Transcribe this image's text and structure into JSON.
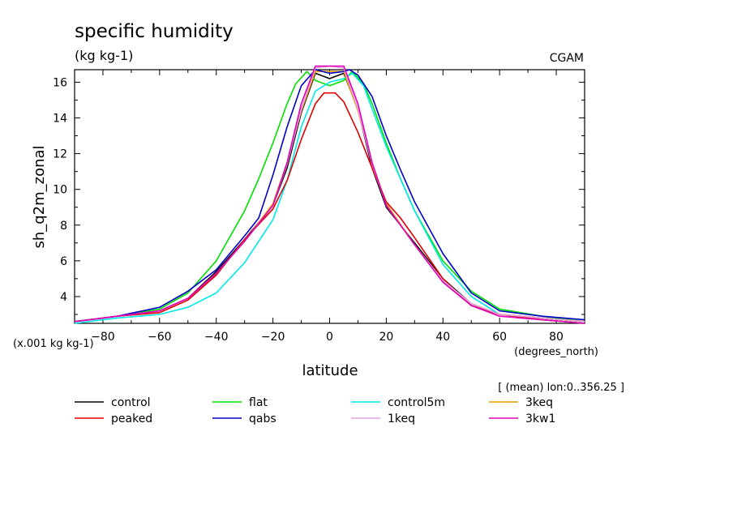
{
  "chart_data": {
    "type": "line",
    "title": "specific humidity",
    "subtitle": "(kg kg-1)",
    "source": "CGAM",
    "xlabel": "latitude",
    "x_units": "(degrees_north)",
    "ylabel": "sh_q2m_zonal",
    "y_units": "(x.001 kg kg-1)",
    "averaging_note": "[ (mean) lon:0..356.25 ]",
    "xlim": [
      -90,
      90
    ],
    "ylim": [
      2.5,
      16.7
    ],
    "x_ticks": [
      -80,
      -60,
      -40,
      -20,
      0,
      20,
      40,
      60,
      80
    ],
    "x_tick_labels": [
      "−80",
      "−60",
      "−40",
      "−20",
      "0",
      "20",
      "40",
      "60",
      "80"
    ],
    "y_ticks": [
      4,
      6,
      8,
      10,
      12,
      14,
      16
    ],
    "y_tick_labels": [
      "4",
      "6",
      "8",
      "10",
      "12",
      "14",
      "16"
    ],
    "grid": false,
    "legend_position": "bottom",
    "series": [
      {
        "name": "control",
        "color": "#000000",
        "x": [
          -90,
          -75,
          -60,
          -50,
          -40,
          -30,
          -20,
          -15,
          -10,
          -5,
          0,
          5,
          10,
          15,
          20,
          30,
          40,
          50,
          60,
          75,
          90
        ],
        "y": [
          2.6,
          2.9,
          3.2,
          3.9,
          5.4,
          7.2,
          9.1,
          11.2,
          14.3,
          16.5,
          16.2,
          16.5,
          14.5,
          11.2,
          9.0,
          7.0,
          5.0,
          3.6,
          3.0,
          2.8,
          2.6
        ]
      },
      {
        "name": "flat",
        "color": "#00e000",
        "x": [
          -90,
          -75,
          -60,
          -50,
          -40,
          -30,
          -25,
          -20,
          -15,
          -12,
          -8,
          -5,
          0,
          5,
          8,
          12,
          15,
          20,
          25,
          30,
          40,
          50,
          60,
          75,
          90
        ],
        "y": [
          2.6,
          2.9,
          3.3,
          4.2,
          6.0,
          8.8,
          10.6,
          12.6,
          14.8,
          15.9,
          16.6,
          16.1,
          15.8,
          16.1,
          16.6,
          15.9,
          14.8,
          12.6,
          10.6,
          8.8,
          6.0,
          4.3,
          3.3,
          2.9,
          2.6
        ]
      },
      {
        "name": "control5m",
        "color": "#00e8e8",
        "x": [
          -90,
          -75,
          -60,
          -50,
          -40,
          -30,
          -20,
          -15,
          -10,
          -5,
          0,
          5,
          8,
          12,
          15,
          20,
          30,
          40,
          50,
          60,
          75,
          90
        ],
        "y": [
          2.5,
          2.8,
          3.0,
          3.4,
          4.2,
          5.9,
          8.3,
          10.5,
          13.5,
          15.5,
          16.0,
          16.2,
          16.5,
          15.8,
          14.5,
          12.4,
          8.8,
          5.8,
          4.0,
          3.0,
          2.7,
          2.5
        ]
      },
      {
        "name": "3keq",
        "color": "#e8a000",
        "x": [
          -90,
          -75,
          -60,
          -50,
          -40,
          -30,
          -20,
          -15,
          -10,
          -5,
          0,
          5,
          10,
          15,
          20,
          30,
          40,
          50,
          60,
          75,
          90
        ],
        "y": [
          2.6,
          2.9,
          3.2,
          3.9,
          5.3,
          7.1,
          9.2,
          11.5,
          14.4,
          16.6,
          16.6,
          16.6,
          14.4,
          11.5,
          9.2,
          6.9,
          4.9,
          3.6,
          3.0,
          2.8,
          2.6
        ]
      },
      {
        "name": "peaked",
        "color": "#e00000",
        "x": [
          -90,
          -75,
          -60,
          -50,
          -40,
          -30,
          -20,
          -15,
          -10,
          -5,
          -2,
          2,
          5,
          10,
          15,
          20,
          25,
          30,
          40,
          50,
          60,
          75,
          90
        ],
        "y": [
          2.6,
          2.9,
          3.1,
          3.8,
          5.2,
          7.2,
          8.9,
          10.5,
          12.8,
          14.8,
          15.4,
          15.4,
          14.9,
          13.2,
          11.2,
          9.3,
          8.4,
          7.3,
          5.0,
          3.5,
          3.0,
          2.7,
          2.5
        ]
      },
      {
        "name": "qabs",
        "color": "#0000c8",
        "x": [
          -90,
          -75,
          -60,
          -50,
          -40,
          -30,
          -25,
          -20,
          -15,
          -10,
          -5,
          0,
          5,
          7,
          10,
          15,
          20,
          25,
          30,
          40,
          50,
          60,
          75,
          90
        ],
        "y": [
          2.6,
          2.9,
          3.4,
          4.3,
          5.5,
          7.4,
          8.4,
          10.8,
          13.5,
          15.8,
          16.7,
          16.5,
          16.6,
          16.7,
          16.4,
          15.2,
          13.0,
          11.1,
          9.3,
          6.4,
          4.2,
          3.2,
          2.9,
          2.7
        ]
      },
      {
        "name": "1keq",
        "color": "#e8a0e0",
        "x": [
          -90,
          -75,
          -60,
          -50,
          -40,
          -30,
          -20,
          -15,
          -10,
          -5,
          0,
          5,
          10,
          15,
          20,
          30,
          40,
          50,
          60,
          75,
          90
        ],
        "y": [
          2.6,
          2.9,
          3.2,
          3.9,
          5.3,
          7.1,
          9.1,
          11.4,
          14.5,
          16.8,
          16.9,
          16.8,
          14.5,
          11.4,
          9.1,
          6.9,
          4.9,
          3.6,
          3.0,
          2.8,
          2.6
        ]
      },
      {
        "name": "3kw1",
        "color": "#e000b8",
        "x": [
          -90,
          -75,
          -60,
          -50,
          -40,
          -30,
          -20,
          -15,
          -10,
          -5,
          0,
          5,
          10,
          15,
          20,
          30,
          40,
          50,
          60,
          75,
          90
        ],
        "y": [
          2.6,
          2.9,
          3.2,
          3.9,
          5.3,
          7.1,
          9.1,
          11.5,
          14.8,
          16.9,
          16.9,
          16.9,
          14.8,
          11.5,
          9.1,
          6.9,
          4.8,
          3.5,
          2.9,
          2.7,
          2.5
        ]
      }
    ],
    "legend_order": [
      "control",
      "flat",
      "control5m",
      "3keq",
      "peaked",
      "qabs",
      "1keq",
      "3kw1"
    ]
  }
}
